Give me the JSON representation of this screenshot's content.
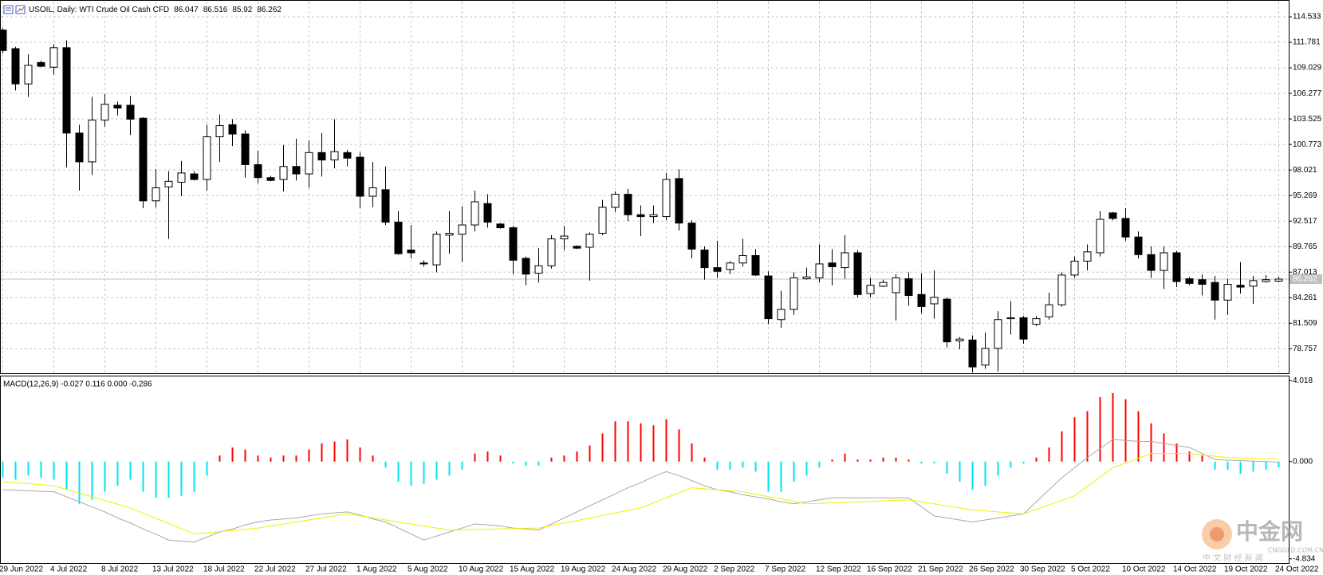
{
  "header": {
    "title": "USOIL, Daily: WTI Crude Oil Cash CFD"
  },
  "chart_data": [
    {
      "type": "candlestick",
      "categories": [
        "29 Jun 2022",
        null,
        null,
        null,
        "4 Jul 2022",
        null,
        null,
        null,
        "8 Jul 2022",
        null,
        null,
        null,
        "13 Jul 2022",
        null,
        null,
        null,
        "18 Jul 2022",
        null,
        null,
        null,
        "22 Jul 2022",
        null,
        null,
        null,
        "27 Jul 2022",
        null,
        null,
        null,
        "1 Aug 2022",
        null,
        null,
        null,
        "5 Aug 2022",
        null,
        null,
        null,
        "10 Aug 2022",
        null,
        null,
        null,
        "15 Aug 2022",
        null,
        null,
        null,
        "19 Aug 2022",
        null,
        null,
        null,
        "24 Aug 2022",
        null,
        null,
        null,
        "29 Aug 2022",
        null,
        null,
        null,
        "2 Sep 2022",
        null,
        null,
        null,
        "7 Sep 2022",
        null,
        null,
        null,
        "12 Sep 2022",
        null,
        null,
        null,
        "16 Sep 2022",
        null,
        null,
        null,
        "21 Sep 2022",
        null,
        null,
        null,
        "26 Sep 2022",
        null,
        null,
        null,
        "30 Sep 2022",
        null,
        null,
        null,
        "5 Oct 2022",
        null,
        null,
        null,
        "10 Oct 2022",
        null,
        null,
        null,
        "14 Oct 2022",
        null,
        null,
        null,
        "19 Oct 2022",
        null,
        null,
        null,
        "24 Oct 2022"
      ],
      "open": [
        113.1,
        111.1,
        107.3,
        109.6,
        109.1,
        111.2,
        102.0,
        98.9,
        103.4,
        105.0,
        105.0,
        103.6,
        94.7,
        96.2,
        96.7,
        97.6,
        97.0,
        101.6,
        102.9,
        101.9,
        98.6,
        97.2,
        97.0,
        98.4,
        97.6,
        99.9,
        99.1,
        99.9,
        99.4,
        95.2,
        95.9,
        92.4,
        89.4,
        88.0,
        87.8,
        91.0,
        91.1,
        92.1,
        94.4,
        92.2,
        91.8,
        88.5,
        86.9,
        87.7,
        90.6,
        89.8,
        89.7,
        91.2,
        94.0,
        95.4,
        93.2,
        93.0,
        93.0,
        97.1,
        92.3,
        89.4,
        87.5,
        87.3,
        88.0,
        88.8,
        86.6,
        81.9,
        83.0,
        86.3,
        86.4,
        88.0,
        87.5,
        89.1,
        84.7,
        85.5,
        84.8,
        86.3,
        84.6,
        83.6,
        84.1,
        79.6,
        79.7,
        77.0,
        78.8,
        82.0,
        82.1,
        81.4,
        82.2,
        83.5,
        86.7,
        88.2,
        89.1,
        93.4,
        92.8,
        90.8,
        88.9,
        87.2,
        89.1,
        86.3,
        86.2,
        85.9,
        84.0,
        85.6,
        85.5,
        86.0,
        86.047
      ],
      "high": [
        113.3,
        111.3,
        110.5,
        109.8,
        111.6,
        112.0,
        102.9,
        105.9,
        106.2,
        105.4,
        106.0,
        103.7,
        98.1,
        97.9,
        99.0,
        97.9,
        102.9,
        104.0,
        103.5,
        102.3,
        100.1,
        97.4,
        100.7,
        101.4,
        101.2,
        102.0,
        103.5,
        100.2,
        99.9,
        98.9,
        98.4,
        93.6,
        92.1,
        88.3,
        91.4,
        93.6,
        94.1,
        95.8,
        95.4,
        92.3,
        92.0,
        88.7,
        89.6,
        91.0,
        92.0,
        89.9,
        91.3,
        94.8,
        95.7,
        96.0,
        94.2,
        94.2,
        97.7,
        98.1,
        92.6,
        89.8,
        90.4,
        88.2,
        90.6,
        89.5,
        87.1,
        85.0,
        87.0,
        87.5,
        90.0,
        89.5,
        91.0,
        89.4,
        86.4,
        86.2,
        86.8,
        87.0,
        86.9,
        87.2,
        84.3,
        80.0,
        80.2,
        80.5,
        82.8,
        83.9,
        82.3,
        82.3,
        84.8,
        87.0,
        88.7,
        90.0,
        93.6,
        93.5,
        93.9,
        91.4,
        89.8,
        89.8,
        89.3,
        86.5,
        86.8,
        86.6,
        86.3,
        88.1,
        86.6,
        86.7,
        86.516
      ],
      "low": [
        110.6,
        106.6,
        105.9,
        109.1,
        108.3,
        98.3,
        95.8,
        97.5,
        102.7,
        103.9,
        101.8,
        93.9,
        94.0,
        90.6,
        95.2,
        96.9,
        95.8,
        98.9,
        100.6,
        97.2,
        96.6,
        96.8,
        95.7,
        96.9,
        96.1,
        97.3,
        98.2,
        98.4,
        93.9,
        94.0,
        92.1,
        88.9,
        88.5,
        87.6,
        87.0,
        89.0,
        88.1,
        91.4,
        91.8,
        91.7,
        86.8,
        85.6,
        85.9,
        87.4,
        89.4,
        89.5,
        86.1,
        91.0,
        93.5,
        92.5,
        90.9,
        92.3,
        92.6,
        91.5,
        88.5,
        86.2,
        86.4,
        86.8,
        87.6,
        86.6,
        81.4,
        81.0,
        82.4,
        86.2,
        85.9,
        85.6,
        86.3,
        84.3,
        84.3,
        85.4,
        81.8,
        83.4,
        82.6,
        82.0,
        78.9,
        78.7,
        76.2,
        76.6,
        76.3,
        80.3,
        79.3,
        81.2,
        81.9,
        83.3,
        86.4,
        87.2,
        88.7,
        92.6,
        90.4,
        88.5,
        86.4,
        85.2,
        85.4,
        85.6,
        84.5,
        81.9,
        82.4,
        84.7,
        83.6,
        85.9,
        85.92
      ],
      "close": [
        110.9,
        107.3,
        109.3,
        109.2,
        111.2,
        102.0,
        98.9,
        103.4,
        105.1,
        104.7,
        103.5,
        94.7,
        96.1,
        96.8,
        97.7,
        97.0,
        101.6,
        102.8,
        101.9,
        98.6,
        97.2,
        96.9,
        98.4,
        97.6,
        99.9,
        99.1,
        100.0,
        99.3,
        95.2,
        96.1,
        92.4,
        89.0,
        89.1,
        87.9,
        91.1,
        91.2,
        92.1,
        94.6,
        92.4,
        91.8,
        88.3,
        86.8,
        87.7,
        90.6,
        90.9,
        89.6,
        91.1,
        94.0,
        95.4,
        93.2,
        93.0,
        93.2,
        97.0,
        92.3,
        89.5,
        87.5,
        87.1,
        88.0,
        88.8,
        86.7,
        82.0,
        83.0,
        86.4,
        86.5,
        87.9,
        87.6,
        89.1,
        84.6,
        85.6,
        85.9,
        86.4,
        84.5,
        83.3,
        84.3,
        79.5,
        79.8,
        76.8,
        78.8,
        81.9,
        82.1,
        79.8,
        82.0,
        83.5,
        86.7,
        88.2,
        89.2,
        92.7,
        92.8,
        90.8,
        88.9,
        87.2,
        89.1,
        86.0,
        85.8,
        85.7,
        84.0,
        85.7,
        85.4,
        86.1,
        86.2,
        86.262
      ],
      "up_color": "#ffffff",
      "down_color": "#000000",
      "ylim": [
        76.12,
        116.17
      ],
      "yticks": [
        114.533,
        111.781,
        109.029,
        106.277,
        103.525,
        100.773,
        98.021,
        95.269,
        92.517,
        89.765,
        87.013,
        84.261,
        81.509,
        78.757
      ],
      "grid": true,
      "current_price_line": true
    },
    {
      "type": "macd",
      "title": "MACD(12,26,9) -0.027 0.116 0.000 -0.286",
      "histogram": {
        "up_color": "#ff0000",
        "down_color": "#00e5ee",
        "values": [
          -0.8,
          -0.9,
          -0.7,
          -0.8,
          -0.9,
          -1.4,
          -2.1,
          -1.9,
          -1.5,
          -1.2,
          -0.9,
          -1.5,
          -1.8,
          -1.8,
          -1.7,
          -1.5,
          -0.7,
          0.3,
          0.7,
          0.6,
          0.3,
          0.2,
          0.3,
          0.3,
          0.6,
          0.9,
          1.0,
          1.1,
          0.7,
          0.3,
          -0.3,
          -1.0,
          -1.2,
          -1.1,
          -0.9,
          -0.7,
          -0.4,
          0.4,
          0.5,
          0.3,
          -0.1,
          -0.2,
          -0.2,
          0.2,
          0.3,
          0.5,
          0.8,
          1.4,
          2.0,
          2.0,
          1.9,
          1.8,
          2.1,
          1.6,
          0.9,
          0.2,
          -0.4,
          -0.4,
          -0.3,
          -0.5,
          -1.5,
          -1.5,
          -1.0,
          -0.7,
          -0.3,
          0.1,
          0.4,
          0.1,
          0.1,
          0.2,
          0.2,
          0.1,
          -0.1,
          -0.1,
          -0.6,
          -1.0,
          -1.4,
          -1.2,
          -0.7,
          -0.3,
          -0.1,
          0.2,
          0.7,
          1.5,
          2.2,
          2.5,
          3.2,
          3.4,
          3.1,
          2.5,
          1.9,
          1.4,
          0.9,
          0.5,
          0.3,
          -0.4,
          -0.4,
          -0.6,
          -0.5,
          -0.4,
          -0.286
        ]
      },
      "series": [
        {
          "color": "#a8a8a8",
          "values": [
            -1.4,
            -1.42,
            -1.45,
            -1.48,
            -1.5,
            -1.75,
            -2.0,
            -2.25,
            -2.5,
            -2.8,
            -3.05,
            -3.35,
            -3.6,
            -3.9,
            -3.95,
            -4.0,
            -3.75,
            -3.5,
            -3.35,
            -3.15,
            -3.0,
            -2.9,
            -2.85,
            -2.8,
            -2.7,
            -2.6,
            -2.55,
            -2.5,
            -2.65,
            -2.85,
            -3.0,
            -3.3,
            -3.6,
            -3.9,
            -3.7,
            -3.5,
            -3.3,
            -3.1,
            -3.15,
            -3.2,
            -3.3,
            -3.35,
            -3.4,
            -3.1,
            -2.8,
            -2.5,
            -2.2,
            -1.9,
            -1.6,
            -1.3,
            -1.05,
            -0.75,
            -0.5,
            -0.7,
            -0.95,
            -1.2,
            -1.4,
            -1.5,
            -1.65,
            -1.75,
            -1.85,
            -2.0,
            -2.1,
            -2.0,
            -1.9,
            -1.8,
            -1.8,
            -1.8,
            -1.8,
            -1.8,
            -1.8,
            -1.8,
            -2.25,
            -2.7,
            -2.8,
            -2.9,
            -3.0,
            -2.9,
            -2.8,
            -2.7,
            -2.6,
            -2.0,
            -1.4,
            -0.8,
            -0.3,
            0.2,
            0.65,
            1.1,
            1.05,
            1.0,
            1.0,
            0.9,
            0.8,
            0.7,
            0.4,
            0.1,
            0.07,
            0.05,
            0.02,
            0.0,
            -0.027
          ]
        },
        {
          "color": "#f0f000",
          "values": [
            -1.0,
            -1.05,
            -1.1,
            -1.15,
            -1.2,
            -1.38,
            -1.57,
            -1.75,
            -1.93,
            -2.12,
            -2.3,
            -2.56,
            -2.82,
            -3.08,
            -3.34,
            -3.6,
            -3.54,
            -3.48,
            -3.42,
            -3.36,
            -3.3,
            -3.2,
            -3.1,
            -3.0,
            -2.9,
            -2.8,
            -2.7,
            -2.6,
            -2.7,
            -2.8,
            -2.9,
            -3.0,
            -3.1,
            -3.2,
            -3.3,
            -3.4,
            -3.39,
            -3.37,
            -3.36,
            -3.34,
            -3.33,
            -3.31,
            -3.3,
            -3.18,
            -3.05,
            -2.93,
            -2.8,
            -2.68,
            -2.55,
            -2.43,
            -2.3,
            -2.05,
            -1.8,
            -1.55,
            -1.3,
            -1.35,
            -1.4,
            -1.45,
            -1.5,
            -1.62,
            -1.74,
            -1.86,
            -1.98,
            -2.1,
            -2.08,
            -2.05,
            -2.03,
            -2.0,
            -1.98,
            -1.95,
            -1.93,
            -1.9,
            -2.0,
            -2.1,
            -2.2,
            -2.3,
            -2.4,
            -2.45,
            -2.5,
            -2.55,
            -2.6,
            -2.38,
            -2.15,
            -1.93,
            -1.7,
            -1.23,
            -0.77,
            -0.3,
            -0.07,
            0.17,
            0.4,
            0.4,
            0.4,
            0.4,
            0.33,
            0.27,
            0.2,
            0.18,
            0.16,
            0.14,
            0.116
          ]
        }
      ],
      "ylim": [
        -5.04,
        4.23
      ],
      "yticks": [
        4.018,
        {
          "value": 0,
          "label": "0.000"
        },
        -4.834
      ]
    }
  ],
  "watermark": {
    "logo_text": "中金网",
    "domain": "CNGOLD.COM.CN",
    "tagline": "中 文 财 经 新 闻"
  }
}
